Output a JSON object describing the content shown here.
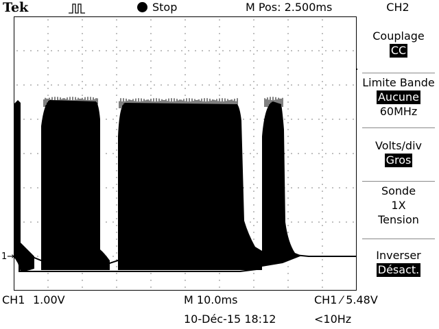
{
  "header": {
    "brand": "Tek",
    "acquire_icon": "pulse-icon",
    "run_state": "Stop",
    "position": "M Pos: 2.500ms",
    "channel": "CH2"
  },
  "menu": {
    "coupling": {
      "label": "Couplage",
      "value": "CC"
    },
    "bandwidth": {
      "label": "Limite Bande",
      "value": "Aucune",
      "extra": "60MHz"
    },
    "volts_div": {
      "label": "Volts/div",
      "value": "Gros"
    },
    "probe": {
      "label": "Sonde",
      "value": "1X",
      "extra": "Tension"
    },
    "invert": {
      "label": "Inverser",
      "value": "Désact."
    }
  },
  "footer": {
    "ch1_label": "CH1",
    "ch1_scale": "1.00V",
    "timebase": "M 10.0ms",
    "trigger": "CH1 ⁄ 5.48V",
    "datetime": "10-Déc-15 18:12",
    "frequency": "<10Hz"
  },
  "channel_marker": "1",
  "colors": {
    "background": "#ffffff",
    "trace": "#000000"
  }
}
